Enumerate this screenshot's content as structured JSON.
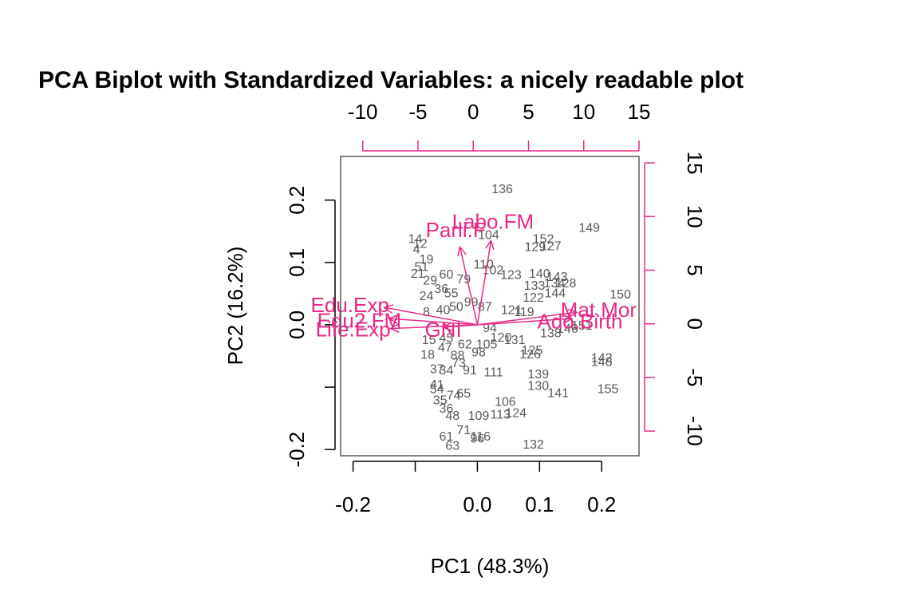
{
  "chart_data": {
    "type": "scatter",
    "title": "PCA Biplot with Standardized Variables: a nicely readable plot",
    "xlabel": "PC1 (48.3%)",
    "ylabel": "PC2 (16.2%)",
    "xlim": [
      -0.22,
      0.26
    ],
    "ylim": [
      -0.21,
      0.27
    ],
    "x_ticks": [
      -0.2,
      0.0,
      0.1,
      0.2
    ],
    "x_tick_labels": [
      "-0.2",
      "0.0",
      "0.1",
      "0.2"
    ],
    "y_ticks": [
      0.2,
      0.1,
      0.0,
      -0.2
    ],
    "y_tick_labels": [
      "0.2",
      "0.1",
      "0.0",
      "-0.2"
    ],
    "x_unlabeled_ticks": [
      -0.1
    ],
    "y_unlabeled_ticks": [
      -0.1
    ],
    "top_axis": {
      "lim": [
        -12,
        15
      ],
      "ticks": [
        -10,
        -5,
        0,
        5,
        10,
        15
      ],
      "labels": [
        "-10",
        "-5",
        "0",
        "5",
        "10",
        "15"
      ]
    },
    "right_axis": {
      "lim": [
        -12.3,
        15.6
      ],
      "ticks": [
        15,
        10,
        5,
        0,
        -5,
        -10
      ],
      "labels": [
        "15",
        "10",
        "5",
        "0",
        "-5",
        "-10"
      ]
    },
    "observations": [
      {
        "label": "136",
        "x": 0.04,
        "y": 0.219
      },
      {
        "label": "149",
        "x": 0.18,
        "y": 0.157
      },
      {
        "label": "152",
        "x": 0.106,
        "y": 0.139
      },
      {
        "label": "127",
        "x": 0.118,
        "y": 0.127
      },
      {
        "label": "129",
        "x": 0.093,
        "y": 0.126
      },
      {
        "label": "104",
        "x": 0.018,
        "y": 0.145
      },
      {
        "label": "110",
        "x": 0.01,
        "y": 0.098
      },
      {
        "label": "102",
        "x": 0.025,
        "y": 0.089
      },
      {
        "label": "123",
        "x": 0.054,
        "y": 0.081
      },
      {
        "label": "140",
        "x": 0.1,
        "y": 0.083
      },
      {
        "label": "143",
        "x": 0.128,
        "y": 0.078
      },
      {
        "label": "128",
        "x": 0.142,
        "y": 0.068
      },
      {
        "label": "133",
        "x": 0.092,
        "y": 0.064
      },
      {
        "label": "134",
        "x": 0.124,
        "y": 0.068
      },
      {
        "label": "144",
        "x": 0.125,
        "y": 0.052
      },
      {
        "label": "122",
        "x": 0.09,
        "y": 0.045
      },
      {
        "label": "150",
        "x": 0.23,
        "y": 0.05
      },
      {
        "label": "121",
        "x": 0.055,
        "y": 0.025
      },
      {
        "label": "119",
        "x": 0.075,
        "y": 0.022
      },
      {
        "label": "138",
        "x": 0.118,
        "y": -0.012
      },
      {
        "label": "146",
        "x": 0.145,
        "y": -0.005
      },
      {
        "label": "151",
        "x": 0.168,
        "y": 0.0
      },
      {
        "label": "131",
        "x": 0.06,
        "y": -0.023
      },
      {
        "label": "120",
        "x": 0.038,
        "y": -0.019
      },
      {
        "label": "125",
        "x": 0.088,
        "y": -0.04
      },
      {
        "label": "126",
        "x": 0.085,
        "y": -0.046
      },
      {
        "label": "142",
        "x": 0.2,
        "y": -0.052
      },
      {
        "label": "148",
        "x": 0.2,
        "y": -0.058
      },
      {
        "label": "139",
        "x": 0.098,
        "y": -0.078
      },
      {
        "label": "111",
        "x": 0.026,
        "y": -0.075
      },
      {
        "label": "130",
        "x": 0.098,
        "y": -0.097
      },
      {
        "label": "141",
        "x": 0.13,
        "y": -0.108
      },
      {
        "label": "155",
        "x": 0.21,
        "y": -0.102
      },
      {
        "label": "106",
        "x": 0.045,
        "y": -0.122
      },
      {
        "label": "124",
        "x": 0.062,
        "y": -0.14
      },
      {
        "label": "113",
        "x": 0.037,
        "y": -0.143
      },
      {
        "label": "109",
        "x": 0.002,
        "y": -0.145
      },
      {
        "label": "132",
        "x": 0.09,
        "y": -0.191
      },
      {
        "label": "116",
        "x": 0.005,
        "y": -0.178
      },
      {
        "label": "96",
        "x": 0.0,
        "y": -0.181
      },
      {
        "label": "71",
        "x": -0.022,
        "y": -0.168
      },
      {
        "label": "61",
        "x": -0.05,
        "y": -0.178
      },
      {
        "label": "63",
        "x": -0.04,
        "y": -0.193
      },
      {
        "label": "48",
        "x": -0.04,
        "y": -0.145
      },
      {
        "label": "36",
        "x": -0.05,
        "y": -0.133
      },
      {
        "label": "35",
        "x": -0.06,
        "y": -0.12
      },
      {
        "label": "74",
        "x": -0.038,
        "y": -0.112
      },
      {
        "label": "65",
        "x": -0.022,
        "y": -0.109
      },
      {
        "label": "41",
        "x": -0.065,
        "y": -0.095
      },
      {
        "label": "54",
        "x": -0.065,
        "y": -0.102
      },
      {
        "label": "37",
        "x": -0.065,
        "y": -0.07
      },
      {
        "label": "34",
        "x": -0.05,
        "y": -0.072
      },
      {
        "label": "18",
        "x": -0.08,
        "y": -0.047
      },
      {
        "label": "15",
        "x": -0.078,
        "y": -0.023
      },
      {
        "label": "88",
        "x": -0.032,
        "y": -0.048
      },
      {
        "label": "47",
        "x": -0.052,
        "y": -0.035
      },
      {
        "label": "91",
        "x": -0.012,
        "y": -0.072
      },
      {
        "label": "98",
        "x": 0.002,
        "y": -0.043
      },
      {
        "label": "14",
        "x": -0.1,
        "y": 0.139
      },
      {
        "label": "12",
        "x": -0.092,
        "y": 0.131
      },
      {
        "label": "4",
        "x": -0.098,
        "y": 0.122
      },
      {
        "label": "19",
        "x": -0.082,
        "y": 0.106
      },
      {
        "label": "51",
        "x": -0.09,
        "y": 0.094
      },
      {
        "label": "21",
        "x": -0.096,
        "y": 0.083
      },
      {
        "label": "29",
        "x": -0.076,
        "y": 0.072
      },
      {
        "label": "60",
        "x": -0.05,
        "y": 0.082
      },
      {
        "label": "79",
        "x": -0.022,
        "y": 0.074
      },
      {
        "label": "36",
        "x": -0.058,
        "y": 0.059
      },
      {
        "label": "55",
        "x": -0.042,
        "y": 0.052
      },
      {
        "label": "24",
        "x": -0.082,
        "y": 0.047
      },
      {
        "label": "8",
        "x": -0.082,
        "y": 0.022
      },
      {
        "label": "50",
        "x": -0.034,
        "y": 0.03
      },
      {
        "label": "87",
        "x": 0.012,
        "y": 0.03
      },
      {
        "label": "99",
        "x": -0.01,
        "y": 0.038
      },
      {
        "label": "94",
        "x": 0.02,
        "y": -0.004
      },
      {
        "label": "40",
        "x": -0.055,
        "y": 0.025
      },
      {
        "label": "45",
        "x": -0.05,
        "y": -0.02
      },
      {
        "label": "62",
        "x": -0.02,
        "y": -0.03
      },
      {
        "label": "73",
        "x": -0.03,
        "y": -0.06
      },
      {
        "label": "105",
        "x": 0.015,
        "y": -0.03
      }
    ],
    "variables": [
      {
        "label": "Labo.FM",
        "x": 0.022,
        "y": 0.135,
        "lx": 0.025,
        "ly": 0.166
      },
      {
        "label": "Parli.F",
        "x": -0.028,
        "y": 0.125,
        "lx": -0.035,
        "ly": 0.152
      },
      {
        "label": "Edu.Exp",
        "x": -0.15,
        "y": 0.028,
        "lx": -0.205,
        "ly": 0.032
      },
      {
        "label": "Edu2.FM",
        "x": -0.142,
        "y": 0.01,
        "lx": -0.19,
        "ly": 0.007
      },
      {
        "label": "Life.Exp",
        "x": -0.14,
        "y": -0.006,
        "lx": -0.2,
        "ly": -0.007
      },
      {
        "label": "GNI",
        "x": -0.055,
        "y": -0.004,
        "lx": -0.055,
        "ly": -0.008
      },
      {
        "label": "Mat.Mor",
        "x": 0.16,
        "y": 0.02,
        "lx": 0.195,
        "ly": 0.024
      },
      {
        "label": "Ado.Birth",
        "x": 0.152,
        "y": 0.01,
        "lx": 0.165,
        "ly": 0.006
      }
    ]
  }
}
